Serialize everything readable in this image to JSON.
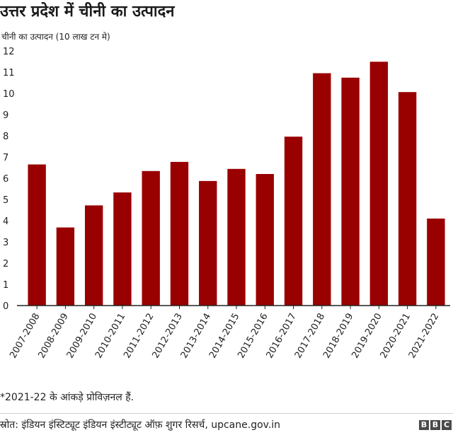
{
  "title": "उत्तर प्रदेश में चीनी का उत्पादन",
  "subtitle": "चीनी का उत्पादन (10 लाख टन मे)",
  "footnote": "*2021-22 के आंकड़े प्रोविज़नल हैं.",
  "source": "स्रोत: इंडियन इंस्टिट्यूट इंडियन इंस्टीट्यूट ऑफ़ शुगर रिसर्च, upcane.gov.in",
  "logo_letters": [
    "B",
    "B",
    "C"
  ],
  "colors": {
    "bar": "#990000",
    "axis": "#222222",
    "text": "#222222"
  },
  "chart_data": {
    "type": "bar",
    "title": "उत्तर प्रदेश में चीनी का उत्पादन",
    "ylabel": "चीनी का उत्पादन (10 लाख टन मे)",
    "xlabel": "",
    "ylim": [
      0,
      12
    ],
    "yticks": [
      0,
      1,
      2,
      3,
      4,
      5,
      6,
      7,
      8,
      9,
      10,
      11,
      12
    ],
    "grid": false,
    "categories": [
      "2007-2008",
      "2008-2009",
      "2009-2010",
      "2010-2011",
      "2011-2012",
      "2012-2013",
      "2013-2014",
      "2014-2015",
      "2015-2016",
      "2016-2017",
      "2017-2018",
      "2018-2019",
      "2019-2020",
      "2020-2021",
      "2021-2022"
    ],
    "values": [
      6.65,
      3.68,
      4.72,
      5.33,
      6.34,
      6.77,
      5.87,
      6.44,
      6.2,
      7.96,
      10.95,
      10.74,
      11.49,
      10.06,
      4.1
    ]
  }
}
